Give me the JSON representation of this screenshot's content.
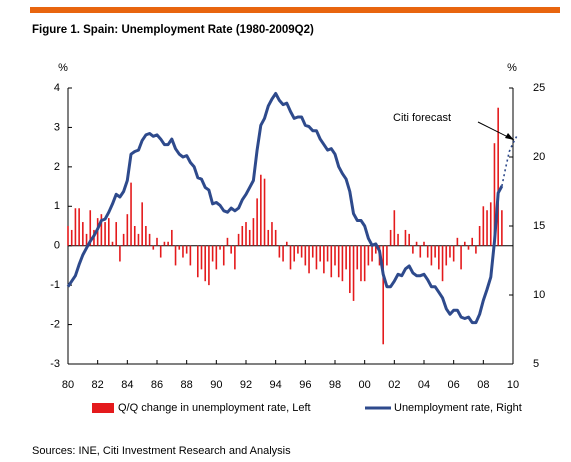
{
  "chart_data": {
    "type": "bar",
    "title": "Figure 1. Spain: Unemployment Rate (1980-2009Q2)",
    "y_label": "%",
    "y2_label": "%",
    "source": "Sources: INE, Citi Investment Research and Analysis",
    "annotation": "Citi forecast",
    "x": [
      1980,
      1980.25,
      1980.5,
      1980.75,
      1981,
      1981.25,
      1981.5,
      1981.75,
      1982,
      1982.25,
      1982.5,
      1982.75,
      1983,
      1983.25,
      1983.5,
      1983.75,
      1984,
      1984.25,
      1984.5,
      1984.75,
      1985,
      1985.25,
      1985.5,
      1985.75,
      1986,
      1986.25,
      1986.5,
      1986.75,
      1987,
      1987.25,
      1987.5,
      1987.75,
      1988,
      1988.25,
      1988.5,
      1988.75,
      1989,
      1989.25,
      1989.5,
      1989.75,
      1990,
      1990.25,
      1990.5,
      1990.75,
      1991,
      1991.25,
      1991.5,
      1991.75,
      1992,
      1992.25,
      1992.5,
      1992.75,
      1993,
      1993.25,
      1993.5,
      1993.75,
      1994,
      1994.25,
      1994.5,
      1994.75,
      1995,
      1995.25,
      1995.5,
      1995.75,
      1996,
      1996.25,
      1996.5,
      1996.75,
      1997,
      1997.25,
      1997.5,
      1997.75,
      1998,
      1998.25,
      1998.5,
      1998.75,
      1999,
      1999.25,
      1999.5,
      1999.75,
      2000,
      2000.25,
      2000.5,
      2000.75,
      2001,
      2001.25,
      2001.5,
      2001.75,
      2002,
      2002.25,
      2002.5,
      2002.75,
      2003,
      2003.25,
      2003.5,
      2003.75,
      2004,
      2004.25,
      2004.5,
      2004.75,
      2005,
      2005.25,
      2005.5,
      2005.75,
      2006,
      2006.25,
      2006.5,
      2006.75,
      2007,
      2007.25,
      2007.5,
      2007.75,
      2008,
      2008.25,
      2008.5,
      2008.75,
      2009,
      2009.25
    ],
    "series": [
      {
        "name": "Q/Q change in unemployment rate, Left",
        "type": "bar",
        "color": "#e41a1c",
        "values": [
          0.5,
          0.4,
          0.95,
          0.95,
          0.6,
          0.3,
          0.9,
          0.4,
          0.7,
          0.8,
          0.6,
          0.7,
          0.1,
          0.6,
          -0.4,
          0.3,
          0.8,
          1.6,
          0.5,
          0.3,
          1.1,
          0.5,
          0.3,
          -0.1,
          0.2,
          -0.3,
          0.1,
          0.1,
          0.4,
          -0.5,
          -0.1,
          -0.3,
          -0.2,
          -0.5,
          0.0,
          -0.8,
          -0.6,
          -0.9,
          -1.0,
          -0.4,
          -0.6,
          -0.1,
          -0.5,
          0.2,
          -0.2,
          -0.6,
          0.3,
          0.5,
          0.6,
          0.4,
          0.7,
          1.2,
          1.8,
          1.7,
          0.4,
          0.6,
          0.4,
          -0.3,
          -0.4,
          0.1,
          -0.6,
          -0.4,
          -0.2,
          -0.3,
          -0.5,
          -0.7,
          -0.3,
          -0.6,
          -0.4,
          -0.7,
          -0.4,
          -0.8,
          -0.5,
          -0.8,
          -0.9,
          -0.6,
          -1.2,
          -1.4,
          -0.6,
          -0.9,
          -0.9,
          -0.5,
          -0.4,
          -0.2,
          -0.5,
          -2.5,
          -0.5,
          0.4,
          0.9,
          0.3,
          0.0,
          0.4,
          0.3,
          -0.2,
          0.1,
          -0.3,
          0.1,
          -0.3,
          -0.5,
          -0.3,
          -0.6,
          -0.9,
          -0.5,
          -0.3,
          -0.4,
          0.2,
          -0.6,
          0.1,
          -0.1,
          0.2,
          -0.2,
          0.5,
          1.0,
          0.9,
          1.1,
          2.6,
          3.5,
          0.9
        ]
      },
      {
        "name": "Unemployment rate, Right",
        "type": "line",
        "axis": "y2",
        "color": "#2e4a8c",
        "values": [
          10.6,
          11.0,
          11.4,
          12.2,
          12.9,
          13.4,
          13.9,
          14.3,
          14.8,
          15.4,
          15.5,
          16.0,
          16.6,
          17.3,
          17.1,
          17.5,
          18.3,
          20.2,
          20.4,
          20.5,
          21.2,
          21.6,
          21.7,
          21.5,
          21.6,
          21.3,
          20.9,
          20.9,
          21.3,
          20.6,
          20.2,
          20.0,
          20.1,
          19.6,
          19.3,
          18.5,
          18.4,
          17.8,
          17.6,
          16.6,
          16.7,
          16.5,
          16.1,
          16.0,
          16.3,
          16.1,
          16.3,
          16.9,
          17.3,
          17.8,
          18.3,
          20.5,
          22.3,
          22.8,
          23.7,
          24.2,
          24.6,
          24.1,
          23.8,
          23.9,
          23.3,
          22.8,
          22.9,
          22.9,
          22.3,
          22.2,
          21.9,
          21.9,
          21.3,
          20.9,
          20.5,
          20.6,
          20.2,
          19.3,
          18.8,
          18.4,
          17.5,
          15.9,
          15.4,
          15.4,
          15.0,
          14.1,
          13.6,
          13.7,
          13.2,
          11.5,
          10.6,
          10.6,
          11.0,
          11.5,
          11.4,
          11.9,
          12.1,
          11.6,
          11.4,
          11.4,
          11.5,
          11.1,
          10.6,
          10.6,
          10.2,
          9.8,
          9.0,
          8.6,
          8.9,
          8.9,
          8.4,
          8.3,
          8.4,
          8.0,
          8.0,
          8.6,
          9.6,
          10.4,
          11.3,
          13.9,
          17.4,
          17.9
        ]
      },
      {
        "type": "line",
        "axis": "y2",
        "color": "#2e4a8c",
        "dashed": true,
        "x": [
          2009.25,
          2009.5,
          2009.75,
          2010,
          2010.25
        ],
        "values": [
          17.9,
          19.2,
          20.4,
          21.0,
          21.5
        ]
      }
    ],
    "xlim": [
      1980,
      2010
    ],
    "xticks": [
      {
        "value": 1980,
        "label": "80"
      },
      {
        "value": 1982,
        "label": "82"
      },
      {
        "value": 1984,
        "label": "84"
      },
      {
        "value": 1986,
        "label": "86"
      },
      {
        "value": 1988,
        "label": "88"
      },
      {
        "value": 1990,
        "label": "90"
      },
      {
        "value": 1992,
        "label": "92"
      },
      {
        "value": 1994,
        "label": "94"
      },
      {
        "value": 1996,
        "label": "96"
      },
      {
        "value": 1998,
        "label": "98"
      },
      {
        "value": 2000,
        "label": "00"
      },
      {
        "value": 2002,
        "label": "02"
      },
      {
        "value": 2004,
        "label": "04"
      },
      {
        "value": 2006,
        "label": "06"
      },
      {
        "value": 2008,
        "label": "08"
      },
      {
        "value": 2010,
        "label": "10"
      }
    ],
    "ylim": [
      -3,
      4
    ],
    "yticks": [
      -3,
      -2,
      -1,
      0,
      1,
      2,
      3,
      4
    ],
    "y2lim": [
      5,
      25
    ],
    "y2ticks": [
      5,
      10,
      15,
      20,
      25
    ],
    "legend": "bottom"
  }
}
